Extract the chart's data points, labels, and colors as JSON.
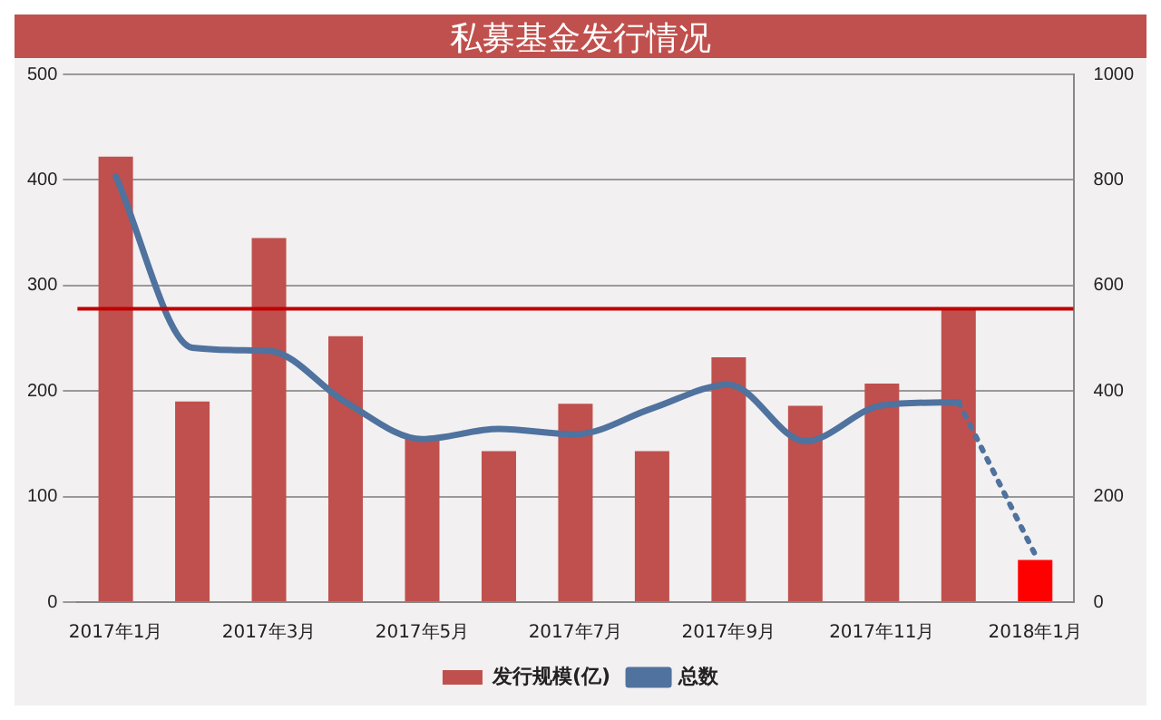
{
  "chart_data": {
    "type": "bar",
    "title": "私募基金发行情况",
    "categories": [
      "2017年1月",
      null,
      "2017年3月",
      null,
      "2017年5月",
      null,
      "2017年7月",
      null,
      "2017年9月",
      null,
      "2017年11月",
      null,
      "2018年1月"
    ],
    "series": [
      {
        "name": "发行规模(亿)",
        "color": "#c0504d",
        "colors": [
          "#c0504d",
          "#c0504d",
          "#c0504d",
          "#c0504d",
          "#c0504d",
          "#c0504d",
          "#c0504d",
          "#c0504d",
          "#c0504d",
          "#c0504d",
          "#c0504d",
          "#c0504d",
          "#ff0000"
        ],
        "values": [
          422,
          190,
          345,
          252,
          157,
          143,
          188,
          143,
          232,
          186,
          207,
          278,
          40
        ]
      },
      {
        "name": "总数",
        "type": "line",
        "axis": "y2",
        "color": "#4f729e",
        "line_style": "solid",
        "values": [
          807,
          482,
          476,
          379,
          309,
          328,
          318,
          367,
          412,
          305,
          373,
          379,
          null
        ]
      },
      {
        "type": "line",
        "axis": "y2",
        "color": "#4f729e",
        "line_style": "dotted",
        "values": [
          null,
          null,
          null,
          null,
          null,
          null,
          null,
          null,
          null,
          null,
          null,
          379,
          90
        ]
      }
    ],
    "ylim": [
      0,
      500
    ],
    "yticks": [
      0,
      100,
      200,
      300,
      400,
      500
    ],
    "y2lim": [
      0,
      1000
    ],
    "y2ticks": [
      0,
      200,
      400,
      600,
      800,
      1000
    ],
    "ref_lines": [
      {
        "axis": "y",
        "value": 278,
        "color": "#c00000"
      }
    ],
    "grid": "y",
    "legend": "bottom",
    "marker": "none"
  }
}
